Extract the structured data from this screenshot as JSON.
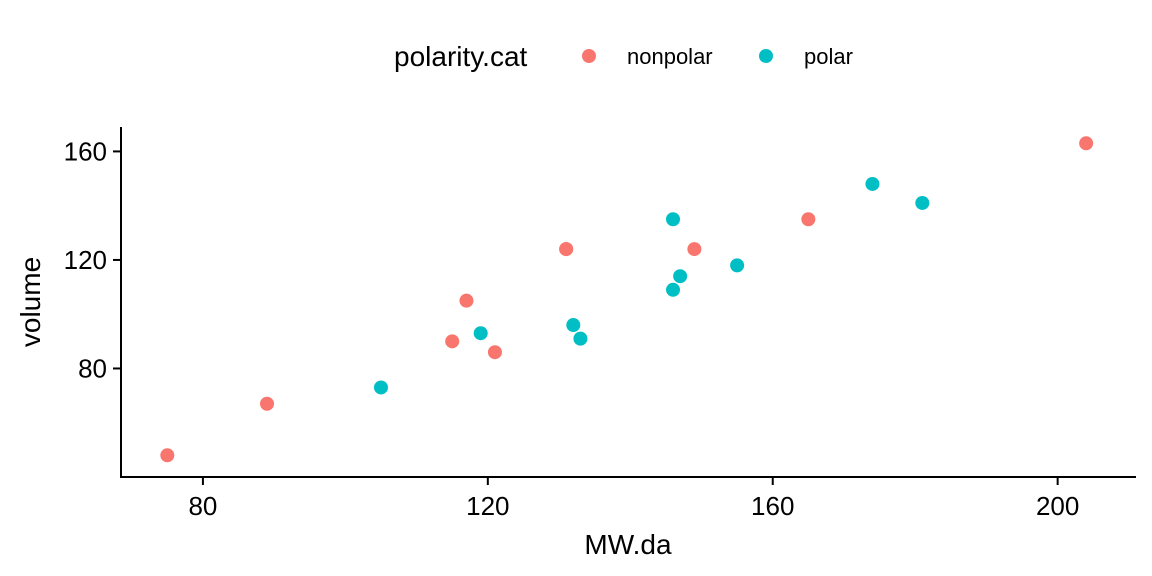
{
  "chart_data": {
    "type": "scatter",
    "xlabel": "MW.da",
    "ylabel": "volume",
    "xlim": [
      68.5,
      211
    ],
    "ylim": [
      40,
      169
    ],
    "xticks": [
      80,
      120,
      160,
      200
    ],
    "yticks": [
      80,
      120,
      160
    ],
    "grid": false,
    "legend": {
      "title": "polarity.cat",
      "placement": "top",
      "entries": [
        "nonpolar",
        "polar"
      ]
    },
    "series": [
      {
        "name": "nonpolar",
        "color": "#F8766D",
        "points": [
          {
            "x": 75,
            "y": 48
          },
          {
            "x": 89,
            "y": 67
          },
          {
            "x": 115,
            "y": 90
          },
          {
            "x": 117,
            "y": 105
          },
          {
            "x": 121,
            "y": 86
          },
          {
            "x": 131,
            "y": 124
          },
          {
            "x": 131,
            "y": 124
          },
          {
            "x": 149,
            "y": 124
          },
          {
            "x": 165,
            "y": 135
          },
          {
            "x": 204,
            "y": 163
          }
        ]
      },
      {
        "name": "polar",
        "color": "#00BFC4",
        "points": [
          {
            "x": 105,
            "y": 73
          },
          {
            "x": 119,
            "y": 93
          },
          {
            "x": 132,
            "y": 96
          },
          {
            "x": 133,
            "y": 91
          },
          {
            "x": 146,
            "y": 109
          },
          {
            "x": 146,
            "y": 135
          },
          {
            "x": 147,
            "y": 114
          },
          {
            "x": 155,
            "y": 118
          },
          {
            "x": 174,
            "y": 148
          },
          {
            "x": 181,
            "y": 141
          }
        ]
      }
    ]
  }
}
